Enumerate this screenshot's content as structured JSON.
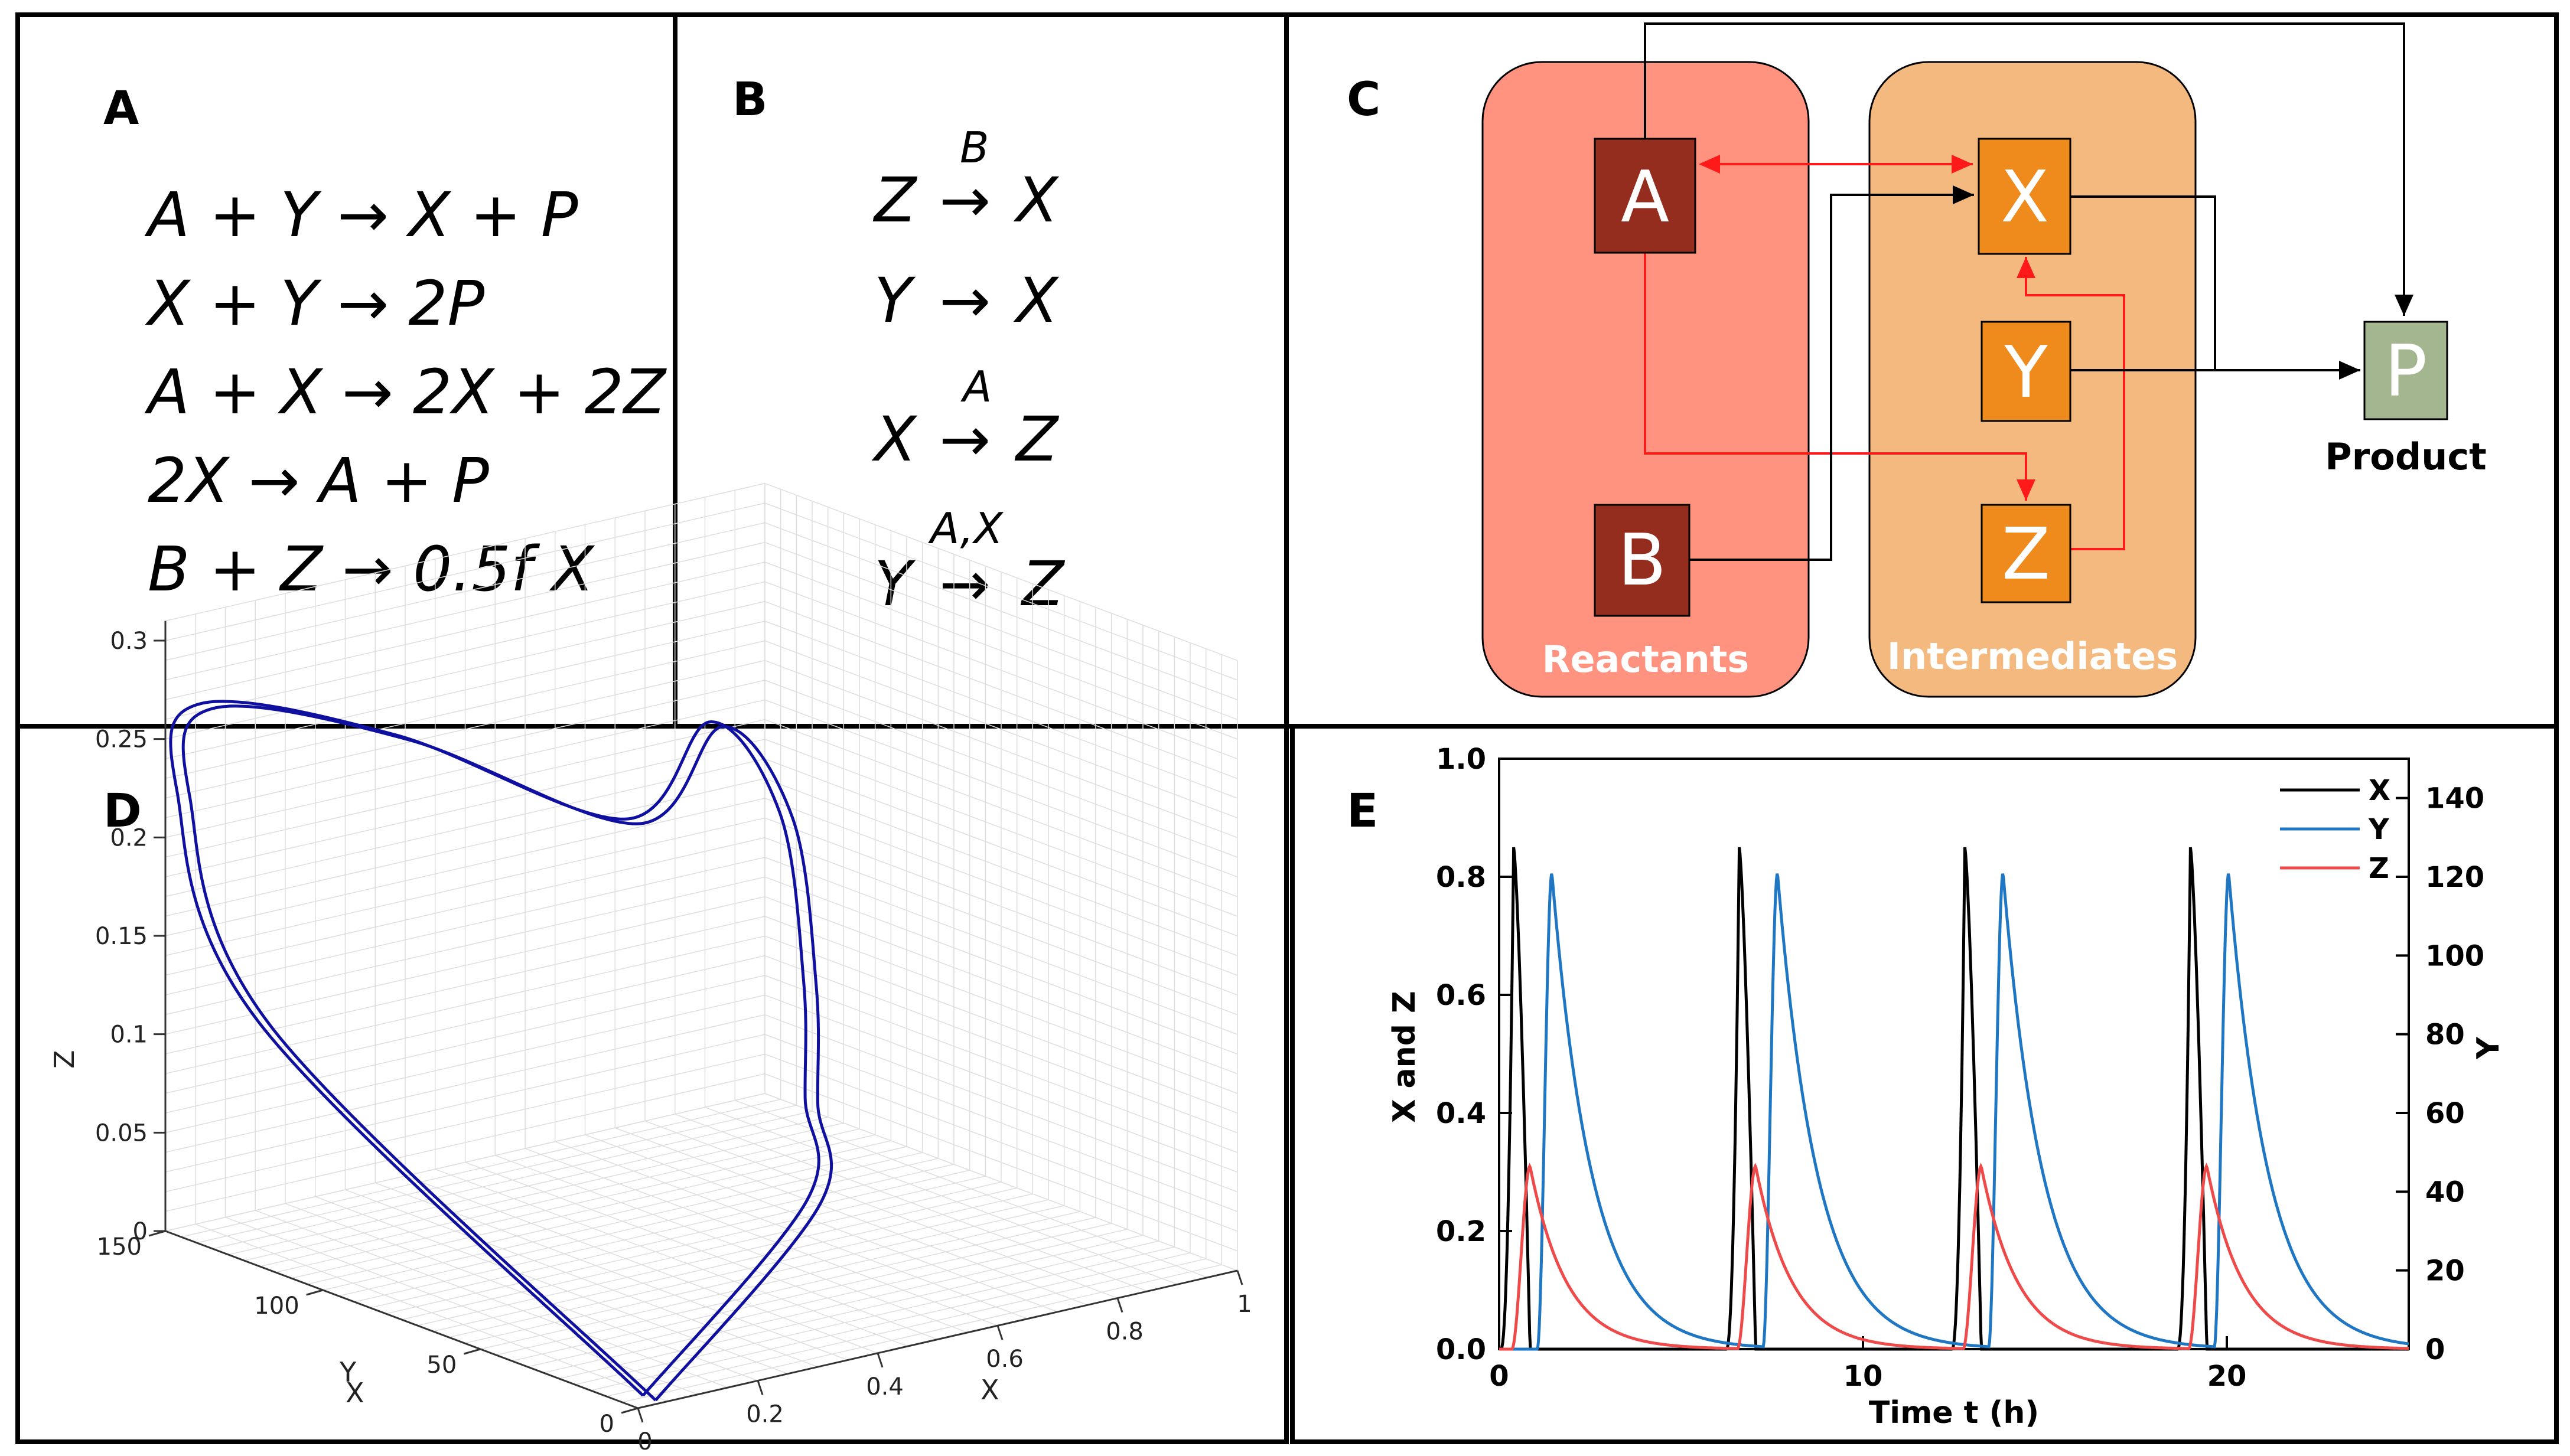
{
  "panels": {
    "A": {
      "letter": "A",
      "equations": [
        "A + Y → X + P",
        "X + Y → 2P",
        "A + X → 2X + 2Z",
        "2X → A + P",
        "B + Z → 0.5f X"
      ]
    },
    "B": {
      "letter": "B",
      "reactions": [
        {
          "from": "Z",
          "to": "X",
          "catalyst": "B"
        },
        {
          "from": "Y",
          "to": "X",
          "catalyst": ""
        },
        {
          "from": "X",
          "to": "Z",
          "catalyst": "A"
        },
        {
          "from": "Y",
          "to": "Z",
          "catalyst": "A,X"
        }
      ],
      "arrow": "→"
    },
    "C": {
      "letter": "C",
      "groups": {
        "reactants": "Reactants",
        "intermediates": "Intermediates",
        "product": "Product"
      },
      "nodes": {
        "A": "A",
        "B": "B",
        "X": "X",
        "Y": "Y",
        "Z": "Z",
        "P": "P"
      },
      "colors": {
        "reactants_bg": "#ff9380",
        "intermediates_bg": "#f4b97f",
        "reactant_node": "#952d1e",
        "intermediate_node": "#ee8b1c",
        "product_node": "#a3b690",
        "red_arrow": "#ff1a1a",
        "black_arrow": "#000000"
      }
    },
    "D": {
      "letter": "D",
      "axes": {
        "x_label": "X",
        "y_label": "Y",
        "z_label": "Z",
        "x_ticks": [
          "0",
          "0.2",
          "0.4",
          "0.6",
          "0.8",
          "1"
        ],
        "y_ticks": [
          "0",
          "50",
          "100",
          "150"
        ],
        "z_ticks": [
          "0",
          "0.05",
          "0.1",
          "0.15",
          "0.2",
          "0.25",
          "0.3"
        ]
      },
      "curve_color": "#1010a0"
    },
    "E": {
      "letter": "E"
    }
  },
  "chart_data": {
    "type": "line",
    "title": "",
    "xlabel": "Time t (h)",
    "ylabel": "X and Z",
    "ylabel_right": "Y",
    "xlim": [
      0,
      25
    ],
    "ylim": [
      0,
      1.0
    ],
    "ylim_right": [
      0,
      150
    ],
    "x_ticks": [
      "0",
      "10",
      "20"
    ],
    "y_ticks": [
      "0.0",
      "0.2",
      "0.4",
      "0.6",
      "0.8",
      "1.0"
    ],
    "y_right_ticks": [
      "0",
      "20",
      "40",
      "60",
      "80",
      "100",
      "120",
      "140"
    ],
    "legend_position": "top-right",
    "period": 6.2,
    "peak_times": [
      0.4,
      6.6,
      12.8,
      19.0
    ],
    "series": [
      {
        "name": "X",
        "axis": "left",
        "color": "#000000",
        "peak_value": 0.85,
        "peak_offset": 0.0
      },
      {
        "name": "Y",
        "axis": "right",
        "color": "#1f77c4",
        "peak_value": 121,
        "peak_offset": 1.05
      },
      {
        "name": "Z",
        "axis": "left",
        "color": "#ef4a4a",
        "peak_value": 0.31,
        "peak_offset": 0.45
      }
    ]
  }
}
